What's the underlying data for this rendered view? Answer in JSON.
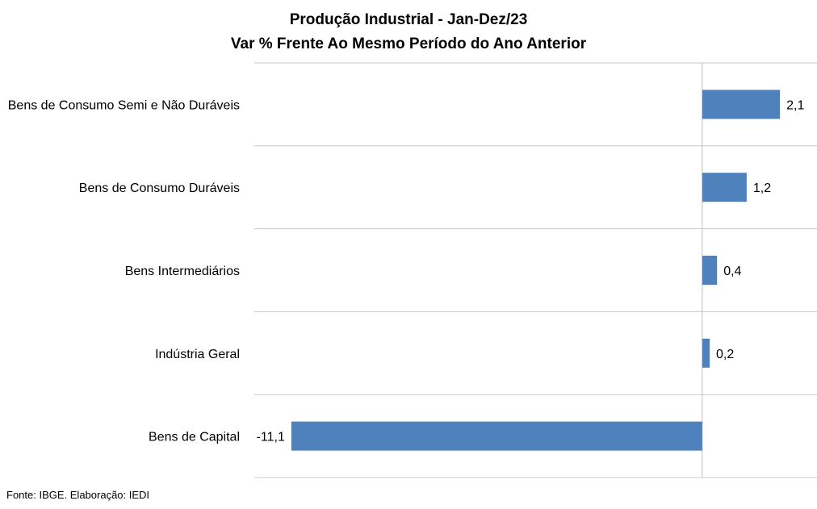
{
  "title_line1": "Produção Industrial - Jan-Dez/23",
  "title_line2": "Var % Frente Ao Mesmo Período do Ano Anterior",
  "source": "Fonte: IBGE. Elaboração: IEDI",
  "colors": {
    "bar": "#4f81bd",
    "grid": "#c8c8c8",
    "zero_line": "#bfbfbf"
  },
  "chart_data": {
    "type": "bar",
    "orientation": "horizontal",
    "categories": [
      "Bens de Consumo Semi e Não Duráveis",
      "Bens de Consumo Duráveis",
      "Bens Intermediários",
      "Indústria Geral",
      "Bens de Capital"
    ],
    "values": [
      2.1,
      1.2,
      0.4,
      0.2,
      -11.1
    ],
    "value_labels": [
      "2,1",
      "1,2",
      "0,4",
      "0,2",
      "-11,1"
    ],
    "xlim": [
      -12.1,
      3.1
    ],
    "grid": true
  }
}
